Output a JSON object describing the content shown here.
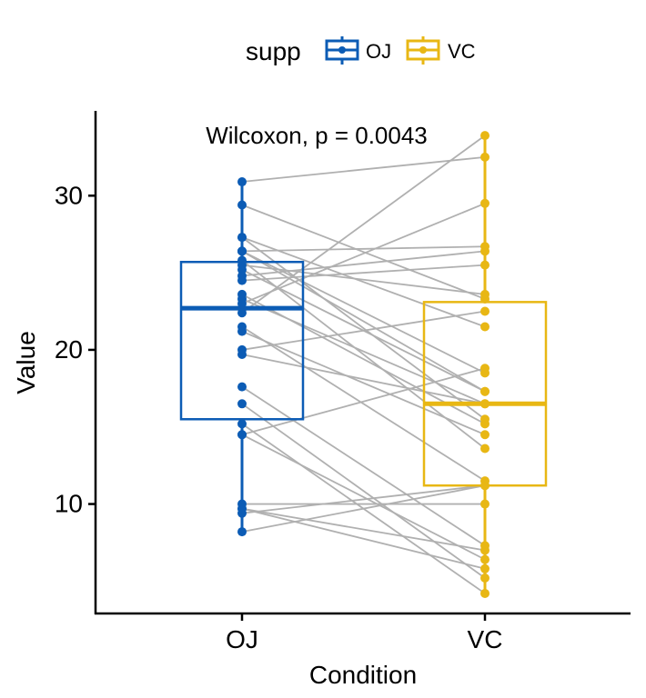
{
  "chart_data": {
    "type": "box_paired",
    "legend": {
      "title": "supp",
      "position": "top",
      "items": [
        {
          "name": "OJ",
          "color": "#0c5cb5"
        },
        {
          "name": "VC",
          "color": "#e8b714"
        }
      ]
    },
    "annotation": "Wilcoxon, p = 0.0043",
    "xlabel": "Condition",
    "ylabel": "Value",
    "categories": [
      "OJ",
      "VC"
    ],
    "ylim": [
      2.9,
      35.5
    ],
    "yticks": [
      10,
      20,
      30
    ],
    "grid": false,
    "line_color": "#b0b0b0",
    "boxes": [
      {
        "name": "OJ",
        "q1": 15.5,
        "median": 22.7,
        "q3": 25.7,
        "whisker_low": 8.2,
        "whisker_high": 30.9,
        "color": "#0c5cb5"
      },
      {
        "name": "VC",
        "q1": 11.2,
        "median": 16.5,
        "q3": 23.1,
        "whisker_low": 4.2,
        "whisker_high": 33.9,
        "color": "#e8b714"
      }
    ],
    "pairs": [
      {
        "oj": 15.2,
        "vc": 4.2
      },
      {
        "oj": 21.5,
        "vc": 11.5
      },
      {
        "oj": 17.6,
        "vc": 7.3
      },
      {
        "oj": 9.7,
        "vc": 5.8
      },
      {
        "oj": 14.5,
        "vc": 6.4
      },
      {
        "oj": 10.0,
        "vc": 10.0
      },
      {
        "oj": 8.2,
        "vc": 11.2
      },
      {
        "oj": 9.4,
        "vc": 11.2
      },
      {
        "oj": 16.5,
        "vc": 5.2
      },
      {
        "oj": 9.7,
        "vc": 7.0
      },
      {
        "oj": 19.7,
        "vc": 16.5
      },
      {
        "oj": 23.3,
        "vc": 16.5
      },
      {
        "oj": 23.6,
        "vc": 15.2
      },
      {
        "oj": 26.4,
        "vc": 17.3
      },
      {
        "oj": 20.0,
        "vc": 22.5
      },
      {
        "oj": 25.2,
        "vc": 17.3
      },
      {
        "oj": 25.8,
        "vc": 13.6
      },
      {
        "oj": 21.2,
        "vc": 14.5
      },
      {
        "oj": 14.5,
        "vc": 18.8
      },
      {
        "oj": 27.3,
        "vc": 15.5
      },
      {
        "oj": 25.5,
        "vc": 23.6
      },
      {
        "oj": 26.4,
        "vc": 18.5
      },
      {
        "oj": 22.4,
        "vc": 33.9
      },
      {
        "oj": 24.5,
        "vc": 25.5
      },
      {
        "oj": 24.8,
        "vc": 26.4
      },
      {
        "oj": 30.9,
        "vc": 32.5
      },
      {
        "oj": 26.4,
        "vc": 26.7
      },
      {
        "oj": 27.3,
        "vc": 21.5
      },
      {
        "oj": 29.4,
        "vc": 23.3
      },
      {
        "oj": 23.0,
        "vc": 29.5
      }
    ]
  }
}
